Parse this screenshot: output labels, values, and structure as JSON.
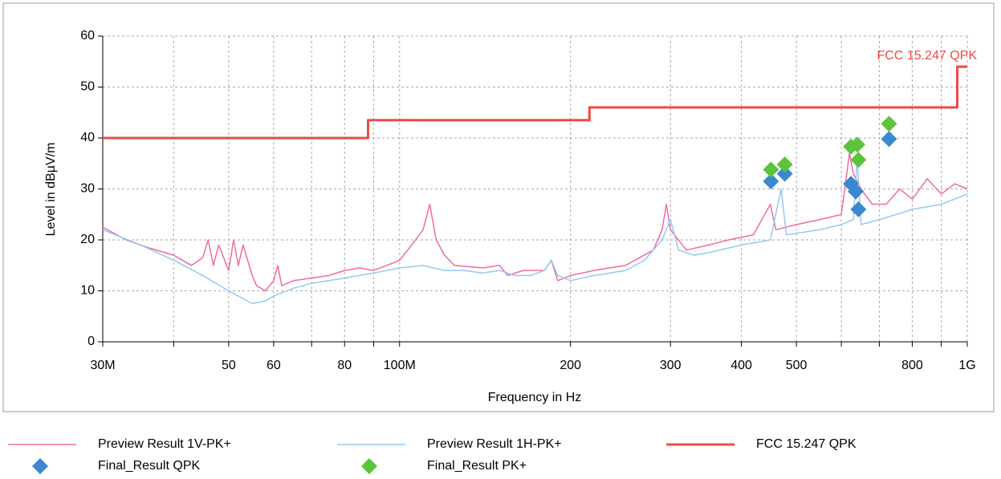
{
  "chart_data": {
    "type": "line",
    "xlabel": "Frequency in Hz",
    "ylabel": "Level in dBµV/m",
    "xscale": "log",
    "grid": true,
    "xlim": [
      30000000,
      1000000000
    ],
    "ylim": [
      0,
      60
    ],
    "yticks": [
      0,
      10,
      20,
      30,
      40,
      50,
      60
    ],
    "xticks": [
      {
        "value": 30000000,
        "label": "30M"
      },
      {
        "value": 50000000,
        "label": "50"
      },
      {
        "value": 60000000,
        "label": "60"
      },
      {
        "value": 80000000,
        "label": "80"
      },
      {
        "value": 100000000,
        "label": "100M"
      },
      {
        "value": 200000000,
        "label": "200"
      },
      {
        "value": 300000000,
        "label": "300"
      },
      {
        "value": 400000000,
        "label": "400"
      },
      {
        "value": 500000000,
        "label": "500"
      },
      {
        "value": 800000000,
        "label": "800"
      },
      {
        "value": 1000000000,
        "label": "1G"
      }
    ],
    "xminorticks": [
      40000000,
      70000000,
      90000000,
      600000000,
      700000000,
      900000000
    ],
    "annotation": "FCC 15.247 QPK",
    "series": [
      {
        "name": "Preview Result 1V-PK+",
        "color": "#f06ca0",
        "style": "line",
        "x": [
          30000000,
          33000000,
          36000000,
          40000000,
          43000000,
          45000000,
          46000000,
          47000000,
          48000000,
          50000000,
          51000000,
          52000000,
          53000000,
          55000000,
          56000000,
          58000000,
          60000000,
          61000000,
          62000000,
          65000000,
          70000000,
          75000000,
          80000000,
          85000000,
          90000000,
          95000000,
          100000000,
          105000000,
          110000000,
          113000000,
          116000000,
          120000000,
          125000000,
          140000000,
          150000000,
          155000000,
          165000000,
          180000000,
          185000000,
          190000000,
          200000000,
          220000000,
          250000000,
          280000000,
          290000000,
          295000000,
          300000000,
          320000000,
          350000000,
          380000000,
          420000000,
          450000000,
          460000000,
          500000000,
          550000000,
          600000000,
          620000000,
          630000000,
          650000000,
          680000000,
          720000000,
          760000000,
          800000000,
          850000000,
          900000000,
          950000000,
          1000000000
        ],
        "values": [
          22.5,
          20,
          18.5,
          17,
          15,
          16.5,
          20,
          15,
          19,
          14,
          20,
          15,
          19,
          13,
          11,
          10,
          12,
          15,
          11,
          12,
          12.5,
          13,
          14,
          14.5,
          14,
          15,
          16,
          19,
          22,
          27,
          20,
          17,
          15,
          14.5,
          15,
          13,
          14,
          14,
          16,
          12,
          13,
          14,
          15,
          18,
          22,
          27,
          22,
          18,
          19,
          20,
          21,
          27,
          22,
          23,
          24,
          25,
          37,
          33,
          30,
          27,
          27,
          30,
          28,
          32,
          29,
          31,
          30
        ]
      },
      {
        "name": "Preview Result 1H-PK+",
        "color": "#94c8f4",
        "style": "line",
        "x": [
          30000000,
          35000000,
          40000000,
          45000000,
          50000000,
          55000000,
          58000000,
          60000000,
          65000000,
          70000000,
          80000000,
          90000000,
          100000000,
          110000000,
          120000000,
          130000000,
          140000000,
          150000000,
          160000000,
          170000000,
          180000000,
          185000000,
          190000000,
          200000000,
          220000000,
          250000000,
          270000000,
          290000000,
          300000000,
          310000000,
          330000000,
          350000000,
          400000000,
          450000000,
          470000000,
          480000000,
          550000000,
          600000000,
          630000000,
          640000000,
          650000000,
          700000000,
          750000000,
          800000000,
          850000000,
          900000000,
          950000000,
          1000000000
        ],
        "values": [
          22,
          19,
          16,
          13,
          10,
          7.5,
          8,
          9,
          10.5,
          11.5,
          12.5,
          13.5,
          14.5,
          15,
          14,
          14,
          13.5,
          14,
          13,
          13,
          14,
          16,
          13,
          12,
          13,
          14,
          16,
          20,
          24,
          18,
          17,
          17.5,
          19,
          20,
          30,
          21,
          22,
          23,
          24,
          36,
          23,
          24,
          25,
          26,
          26.5,
          27,
          28,
          29
        ]
      },
      {
        "name": "FCC 15.247 QPK",
        "color": "#f04848",
        "style": "step",
        "x": [
          30000000,
          88000000,
          88000000,
          216000000,
          216000000,
          960000000,
          960000000,
          1000000000
        ],
        "values": [
          40,
          40,
          43.5,
          43.5,
          46,
          46,
          54,
          54
        ]
      },
      {
        "name": "Final_Result QPK",
        "color": "#3a88d0",
        "style": "marker",
        "x": [
          451000000,
          477000000,
          624000000,
          636000000,
          643000000,
          728000000
        ],
        "values": [
          31.5,
          33,
          31,
          29.5,
          26,
          39.8
        ]
      },
      {
        "name": "Final_Result PK+",
        "color": "#5cc43c",
        "style": "marker",
        "x": [
          451000000,
          477000000,
          624000000,
          640000000,
          643000000,
          728000000
        ],
        "values": [
          33.8,
          34.8,
          38.3,
          38.7,
          35.7,
          42.8
        ]
      }
    ]
  }
}
